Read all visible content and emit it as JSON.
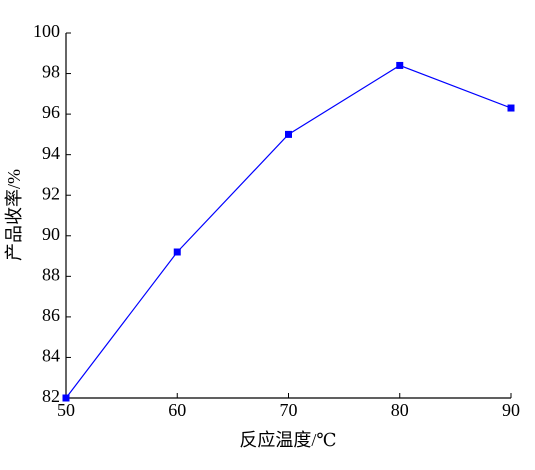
{
  "chart_data": {
    "type": "line",
    "x_label": "反应温度/℃",
    "y_label": "产品收率/%",
    "x": [
      50,
      60,
      70,
      80,
      90
    ],
    "series": [
      {
        "name": "产品收率",
        "color": "#0000ff",
        "values": [
          82,
          89.2,
          95,
          98.4,
          96.3
        ]
      }
    ],
    "xlim": [
      50,
      90
    ],
    "xticks": [
      50,
      60,
      70,
      80,
      90
    ],
    "ylim": [
      82,
      100
    ],
    "yticks": [
      82,
      84,
      86,
      88,
      90,
      92,
      94,
      96,
      98,
      100
    ],
    "grid": false
  }
}
